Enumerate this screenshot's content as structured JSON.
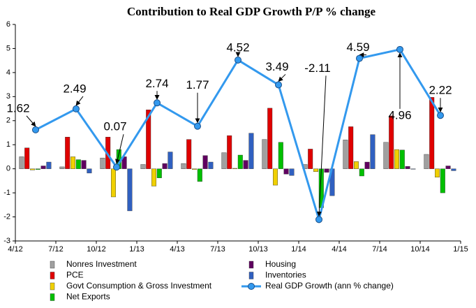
{
  "chart_data": {
    "type": "bar",
    "title": "Contribution to Real GDP Growth P/P % change",
    "categories": [
      null,
      null,
      null,
      null,
      null,
      null,
      null,
      null,
      null,
      null,
      null
    ],
    "xtick_labels": [
      "4/12",
      "7/12",
      "10/12",
      "1/13",
      "4/13",
      "7/13",
      "10/13",
      "1/14",
      "4/14",
      "7/14",
      "10/14",
      "1/15"
    ],
    "ylim": [
      -3,
      6
    ],
    "yticks": [
      -3,
      -2,
      -1,
      0,
      1,
      2,
      3,
      4,
      5,
      6
    ],
    "grid": false,
    "legend": "bottom",
    "series": [
      {
        "name": "Nonres Investment",
        "color": "#a0a0a0",
        "values": [
          0.5,
          0.08,
          0.45,
          0.18,
          0.22,
          0.67,
          1.22,
          0.18,
          1.2,
          1.1,
          0.6
        ]
      },
      {
        "name": "PCE",
        "color": "#e00000",
        "values": [
          0.87,
          1.32,
          1.32,
          2.45,
          1.22,
          1.38,
          2.52,
          0.82,
          1.75,
          2.2,
          2.97
        ]
      },
      {
        "name": "Govt Consumption & Gross Investment",
        "color": "#f0d000",
        "values": [
          -0.05,
          0.5,
          -1.17,
          -0.72,
          -0.03,
          0.02,
          -0.68,
          -0.12,
          0.3,
          0.8,
          -0.35
        ]
      },
      {
        "name": "Net Exports",
        "color": "#00c000",
        "values": [
          -0.03,
          0.38,
          0.8,
          -0.38,
          -0.53,
          0.57,
          1.1,
          -1.62,
          -0.3,
          0.78,
          -1.0
        ]
      },
      {
        "name": "Housing",
        "color": "#600060",
        "values": [
          0.12,
          0.35,
          0.5,
          0.22,
          0.55,
          0.35,
          -0.22,
          -0.15,
          0.28,
          0.1,
          0.12
        ]
      },
      {
        "name": "Inventories",
        "color": "#3060c0",
        "values": [
          0.28,
          -0.18,
          -1.75,
          0.7,
          0.28,
          1.48,
          -0.28,
          -1.12,
          1.42,
          -0.02,
          -0.08
        ]
      },
      {
        "name": "Real GDP Growth (ann % change)",
        "color": "#3399ee",
        "type": "line",
        "values": [
          1.62,
          2.49,
          0.07,
          2.74,
          1.77,
          4.52,
          3.49,
          -2.11,
          4.59,
          4.96,
          2.22
        ]
      }
    ]
  }
}
